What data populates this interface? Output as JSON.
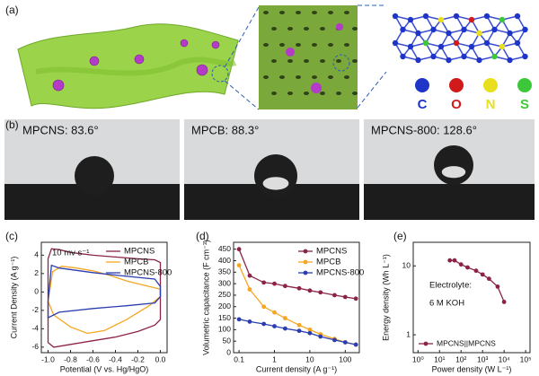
{
  "panel_labels": [
    "(a)",
    "(b)",
    "(c)",
    "(d)",
    "(e)"
  ],
  "elements": [
    {
      "symbol": "C",
      "color": "#1f35c8"
    },
    {
      "symbol": "O",
      "color": "#d11a1a"
    },
    {
      "symbol": "N",
      "color": "#e8e01e"
    },
    {
      "symbol": "S",
      "color": "#3dc83a"
    }
  ],
  "contact_angles": [
    "MPCNS: 83.6°",
    "MPCB: 88.3°",
    "MPCNS-800: 128.6°"
  ],
  "chart_data": [
    {
      "type": "line",
      "xlabel": "Potential (V vs. Hg/HgO)",
      "ylabel": "Current Density (A g⁻¹)",
      "xlim": [
        -1.06,
        0.06
      ],
      "xticks": [
        {
          "value": -1,
          "label": "-1.0"
        },
        {
          "value": -0.8,
          "label": "-0.8"
        },
        {
          "value": -0.6,
          "label": "-0.6"
        },
        {
          "value": -0.4,
          "label": "-0.4"
        },
        {
          "value": -0.2,
          "label": "-0.2"
        },
        {
          "value": 0,
          "label": "0.0"
        }
      ],
      "ylim": [
        -6.6,
        5.4
      ],
      "yticks": [
        -6,
        -4,
        -2,
        0,
        2,
        4
      ],
      "legend": "upper right",
      "markers": false,
      "annotations": [
        "10 mv s⁻¹"
      ],
      "series": [
        {
          "name": "MPCNS",
          "color": "#8b2346",
          "x": [
            -1,
            -0.97,
            -0.9,
            -0.8,
            -0.6,
            -0.4,
            -0.2,
            -0.05,
            0,
            0,
            -0.05,
            -0.2,
            -0.4,
            -0.6,
            -0.8,
            -0.95,
            -1,
            -1
          ],
          "values": [
            3.6,
            4.7,
            4.6,
            4.3,
            4,
            3.8,
            3.6,
            3.5,
            3.2,
            -3,
            -3.6,
            -4.3,
            -4.9,
            -5.3,
            -5.7,
            -6,
            -5.5,
            3.6
          ]
        },
        {
          "name": "MPCB",
          "color": "#f5a623",
          "x": [
            -1,
            -0.96,
            -0.88,
            -0.75,
            -0.6,
            -0.45,
            -0.3,
            -0.1,
            0,
            0,
            -0.1,
            -0.3,
            -0.5,
            -0.65,
            -0.8,
            -0.95,
            -1
          ],
          "values": [
            -1,
            2.2,
            2.8,
            2.6,
            2.3,
            1.8,
            1.2,
            0.6,
            0.3,
            -0.5,
            -1.5,
            -3,
            -4.2,
            -4.5,
            -3.8,
            -2.5,
            -1
          ]
        },
        {
          "name": "MPCNS-800",
          "color": "#2a3db0",
          "x": [
            -1,
            -0.97,
            -0.9,
            -0.6,
            -0.3,
            -0.05,
            0,
            0,
            -0.05,
            -0.3,
            -0.6,
            -0.9,
            -1,
            -1
          ],
          "values": [
            -1,
            2.9,
            2.6,
            2.1,
            1.7,
            1.4,
            0.6,
            -0.5,
            -1.2,
            -1.5,
            -1.8,
            -2.2,
            -2.8,
            -1
          ]
        }
      ]
    },
    {
      "type": "line",
      "xlabel": "Current density (A g⁻¹)",
      "ylabel": "Volumetric capacitance (F cm⁻³)",
      "xscale": "log",
      "xlim": [
        0.07,
        250
      ],
      "xticks": [
        0.1,
        1,
        10,
        100
      ],
      "ylim": [
        0,
        480
      ],
      "yticks": [
        0,
        50,
        100,
        150,
        200,
        250,
        300,
        350,
        400,
        450
      ],
      "legend": "upper right",
      "markers": true,
      "series": [
        {
          "name": "MPCNS",
          "color": "#8b2346",
          "x": [
            0.1,
            0.2,
            0.5,
            1,
            2,
            5,
            10,
            20,
            50,
            100,
            200
          ],
          "values": [
            450,
            335,
            305,
            300,
            290,
            280,
            270,
            262,
            250,
            242,
            235
          ]
        },
        {
          "name": "MPCB",
          "color": "#f5a623",
          "x": [
            0.1,
            0.2,
            0.5,
            1,
            2,
            5,
            10,
            20,
            50,
            100,
            200
          ],
          "values": [
            380,
            275,
            200,
            175,
            150,
            120,
            100,
            80,
            60,
            45,
            35
          ]
        },
        {
          "name": "MPCNS-800",
          "color": "#2a3db0",
          "x": [
            0.1,
            0.2,
            0.5,
            1,
            2,
            5,
            10,
            20,
            50,
            100,
            200
          ],
          "values": [
            145,
            135,
            125,
            115,
            105,
            95,
            85,
            70,
            55,
            45,
            35
          ]
        }
      ]
    },
    {
      "type": "line",
      "xlabel": "Power density (W L⁻¹)",
      "ylabel": "Energy density (Wh L⁻¹)",
      "xscale": "log",
      "yscale": "log",
      "xlim": [
        0.6,
        160000
      ],
      "xticks": [
        {
          "value": 1,
          "label": "10⁰"
        },
        {
          "value": 10,
          "label": "10¹"
        },
        {
          "value": 100,
          "label": "10²"
        },
        {
          "value": 1000,
          "label": "10³"
        },
        {
          "value": 10000,
          "label": "10⁴"
        },
        {
          "value": 100000,
          "label": "10⁵"
        }
      ],
      "ylim": [
        0.55,
        22
      ],
      "yticks": [
        1,
        10
      ],
      "legend": "lower left",
      "markers": true,
      "annotations": [
        "Electrolyte:",
        "6 M KOH"
      ],
      "series": [
        {
          "name": "MPCNS||MPCNS",
          "color": "#8b2346",
          "x": [
            30,
            50,
            100,
            200,
            500,
            1000,
            2000,
            5000,
            10000
          ],
          "values": [
            12,
            12,
            10.5,
            9.5,
            8.5,
            7.5,
            6.5,
            5,
            3
          ]
        }
      ]
    }
  ]
}
